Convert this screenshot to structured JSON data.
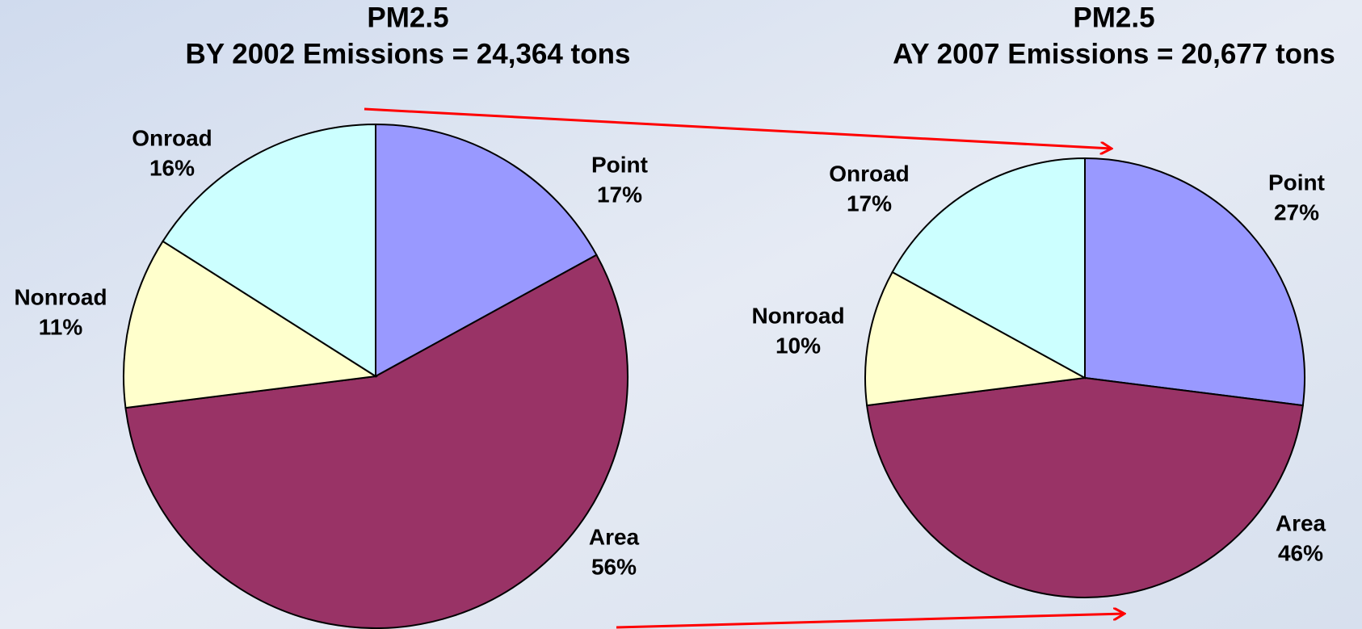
{
  "chart_data": [
    {
      "type": "pie",
      "title": "PM2.5",
      "subtitle": "BY 2002 Emissions = 24,364 tons",
      "categories": [
        "Point",
        "Area",
        "Nonroad",
        "Onroad"
      ],
      "values": [
        17,
        56,
        11,
        16
      ],
      "value_labels": [
        "17%",
        "56%",
        "11%",
        "16%"
      ],
      "colors": [
        "#9999ff",
        "#993366",
        "#ffffcc",
        "#ccffff"
      ]
    },
    {
      "type": "pie",
      "title": "PM2.5",
      "subtitle": "AY 2007 Emissions = 20,677 tons",
      "categories": [
        "Point",
        "Area",
        "Nonroad",
        "Onroad"
      ],
      "values": [
        27,
        46,
        10,
        17
      ],
      "value_labels": [
        "27%",
        "46%",
        "10%",
        "17%"
      ],
      "colors": [
        "#9999ff",
        "#993366",
        "#ffffcc",
        "#ccffff"
      ]
    }
  ]
}
